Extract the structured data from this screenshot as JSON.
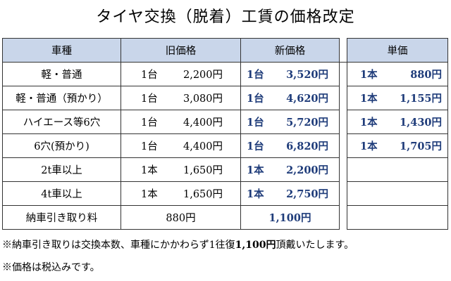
{
  "title": "タイヤ交換（脱着）工賃の価格改定",
  "headers": {
    "type": "車種",
    "old": "旧価格",
    "new": "新価格",
    "unit": "単価"
  },
  "rows": [
    {
      "type": "軽・普通",
      "old_count": "1台",
      "old_price": "2,200円",
      "new_count": "1台",
      "new_price": "3,520円",
      "unit_count": "1本",
      "unit_price": "880円"
    },
    {
      "type": "軽・普通（預かり）",
      "old_count": "1台",
      "old_price": "3,080円",
      "new_count": "1台",
      "new_price": "4,620円",
      "unit_count": "1本",
      "unit_price": "1,155円"
    },
    {
      "type": "ハイエース等6穴",
      "old_count": "1台",
      "old_price": "4,400円",
      "new_count": "1台",
      "new_price": "5,720円",
      "unit_count": "1本",
      "unit_price": "1,430円"
    },
    {
      "type": "6穴(預かり)",
      "old_count": "1台",
      "old_price": "4,400円",
      "new_count": "1台",
      "new_price": "6,820円",
      "unit_count": "1本",
      "unit_price": "1,705円"
    },
    {
      "type": "2t車以上",
      "old_count": "1本",
      "old_price": "1,650円",
      "new_count": "1本",
      "new_price": "2,200円",
      "unit_count": "",
      "unit_price": ""
    },
    {
      "type": "4t車以上",
      "old_count": "1本",
      "old_price": "1,650円",
      "new_count": "1本",
      "new_price": "2,750円",
      "unit_count": "",
      "unit_price": ""
    }
  ],
  "pickup": {
    "type": "納車引き取り料",
    "old_price": "880円",
    "new_price": "1,100円"
  },
  "notes": {
    "note1_prefix": "※納車引き取りは交換本数、車種にかかわらず1往復",
    "note1_price": "1,100円",
    "note1_suffix": "頂戴いたします。",
    "note2": "※価格は税込みです。"
  },
  "colors": {
    "header_bg": "#c9d6ea",
    "new_price_text": "#1f3c7a"
  }
}
